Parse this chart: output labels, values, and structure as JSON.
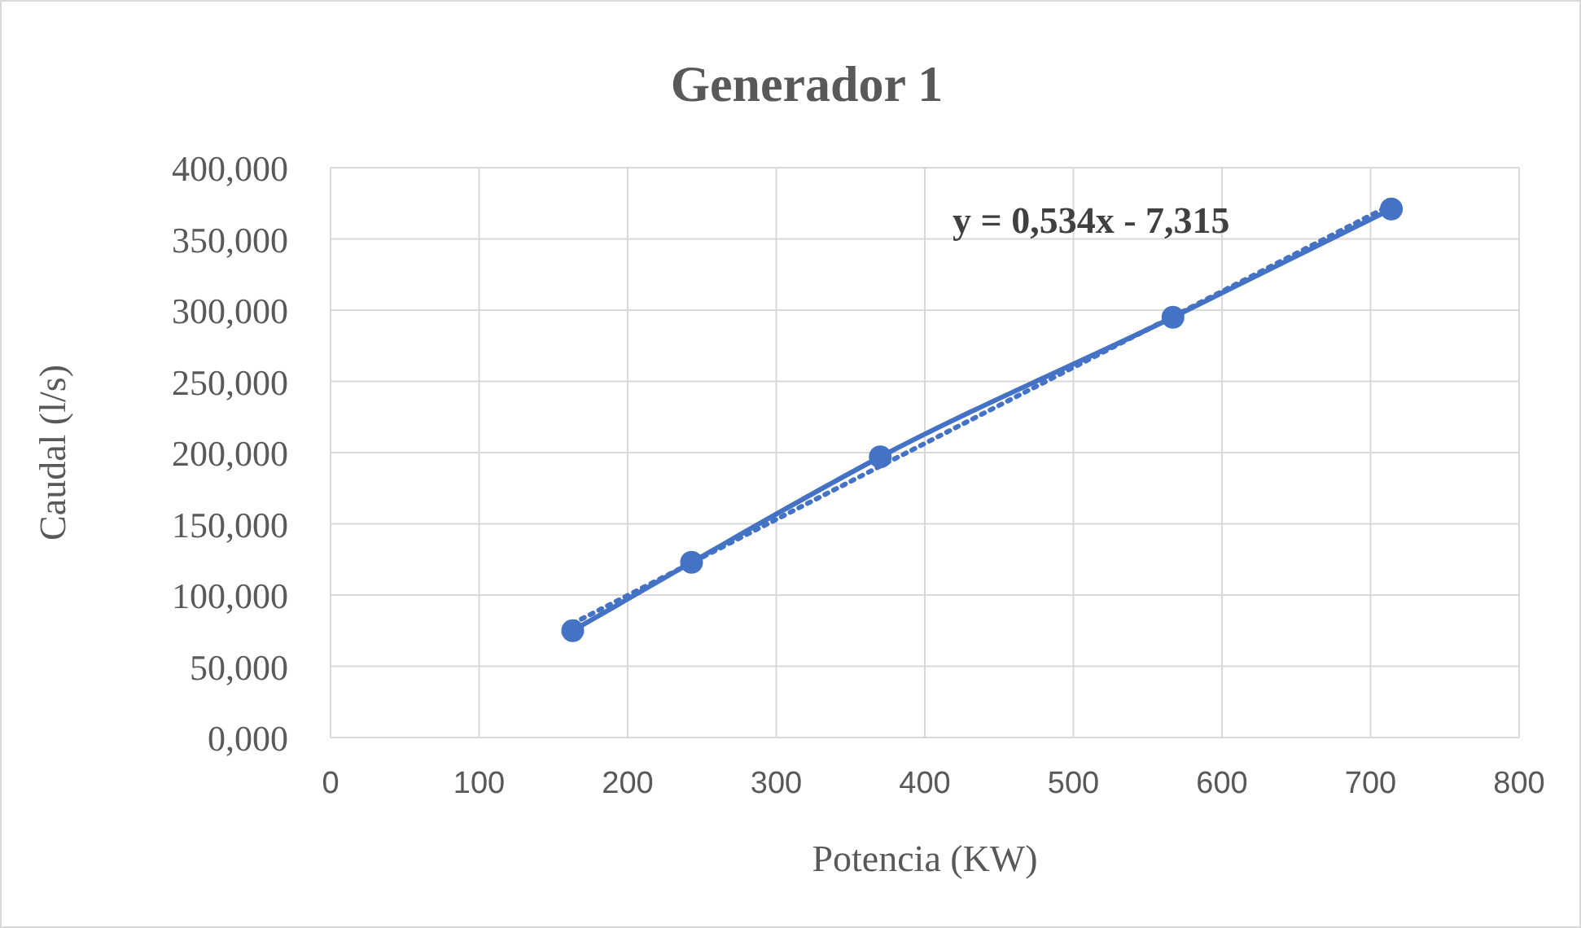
{
  "chart_data": {
    "type": "line",
    "title": "Generador 1",
    "xlabel": "Potencia (KW)",
    "ylabel": "Caudal (l/s)",
    "xlim": [
      0,
      800
    ],
    "xticks": [
      0,
      100,
      200,
      300,
      400,
      500,
      600,
      700,
      800
    ],
    "ylim": [
      0,
      400
    ],
    "yticks": [
      {
        "value": 0,
        "label": "0,000"
      },
      {
        "value": 50,
        "label": "50,000"
      },
      {
        "value": 100,
        "label": "100,000"
      },
      {
        "value": 150,
        "label": "150,000"
      },
      {
        "value": 200,
        "label": "200,000"
      },
      {
        "value": 250,
        "label": "250,000"
      },
      {
        "value": 300,
        "label": "300,000"
      },
      {
        "value": 350,
        "label": "350,000"
      },
      {
        "value": 400,
        "label": "400,000"
      }
    ],
    "grid": true,
    "series": [
      {
        "color": "#4472c4",
        "x": [
          163,
          243,
          370,
          567,
          714
        ],
        "values": [
          75,
          123,
          197,
          295,
          371
        ],
        "marker": "circle",
        "line_style": "solid"
      },
      {
        "color": "#4472c4",
        "x": [
          163,
          714
        ],
        "values": [
          80,
          374
        ],
        "marker": "none",
        "line_style": "dotted"
      }
    ],
    "annotations": [
      "y = 0,534x - 7,315"
    ]
  }
}
